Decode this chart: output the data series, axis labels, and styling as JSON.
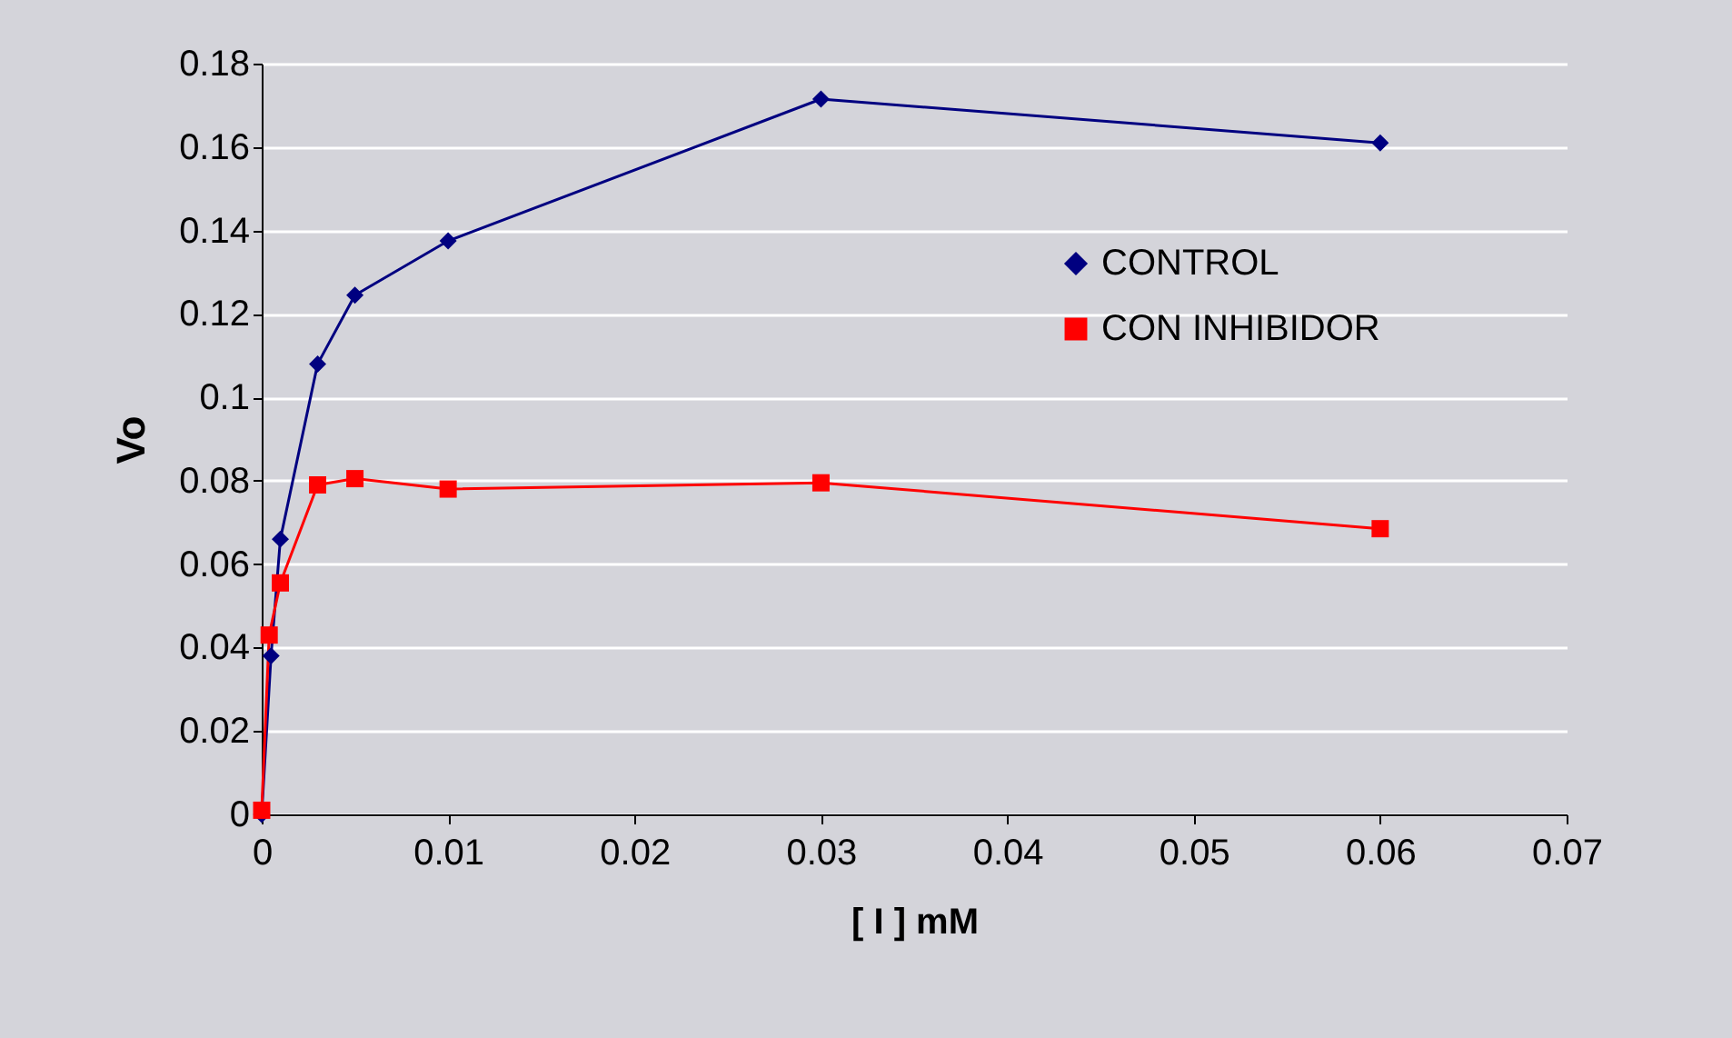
{
  "chart_data": {
    "type": "line",
    "xlabel": "[ I ] mM",
    "ylabel": "Vo",
    "xlim": [
      0,
      0.07
    ],
    "xticks": [
      0,
      0.01,
      0.02,
      0.03,
      0.04,
      0.05,
      0.06,
      0.07
    ],
    "ylim": [
      0,
      0.18
    ],
    "yticks": [
      0,
      0.02,
      0.04,
      0.06,
      0.08,
      0.1,
      0.12,
      0.14,
      0.16,
      0.18
    ],
    "grid": "y",
    "legend": "right",
    "line_style": "solid",
    "series": [
      {
        "name": "CONTROL",
        "color": "#000080",
        "marker": "diamond",
        "x": [
          0,
          0.0005,
          0.001,
          0.003,
          0.005,
          0.01,
          0.03,
          0.06
        ],
        "values": [
          0,
          0.038,
          0.066,
          0.108,
          0.1245,
          0.1375,
          0.1715,
          0.161
        ]
      },
      {
        "name": "CON INHIBIDOR",
        "color": "#ff0000",
        "marker": "square",
        "x": [
          0,
          0.0004,
          0.001,
          0.003,
          0.005,
          0.01,
          0.03,
          0.06
        ],
        "values": [
          0.001,
          0.043,
          0.0555,
          0.079,
          0.0805,
          0.078,
          0.0795,
          0.0685
        ]
      }
    ]
  }
}
